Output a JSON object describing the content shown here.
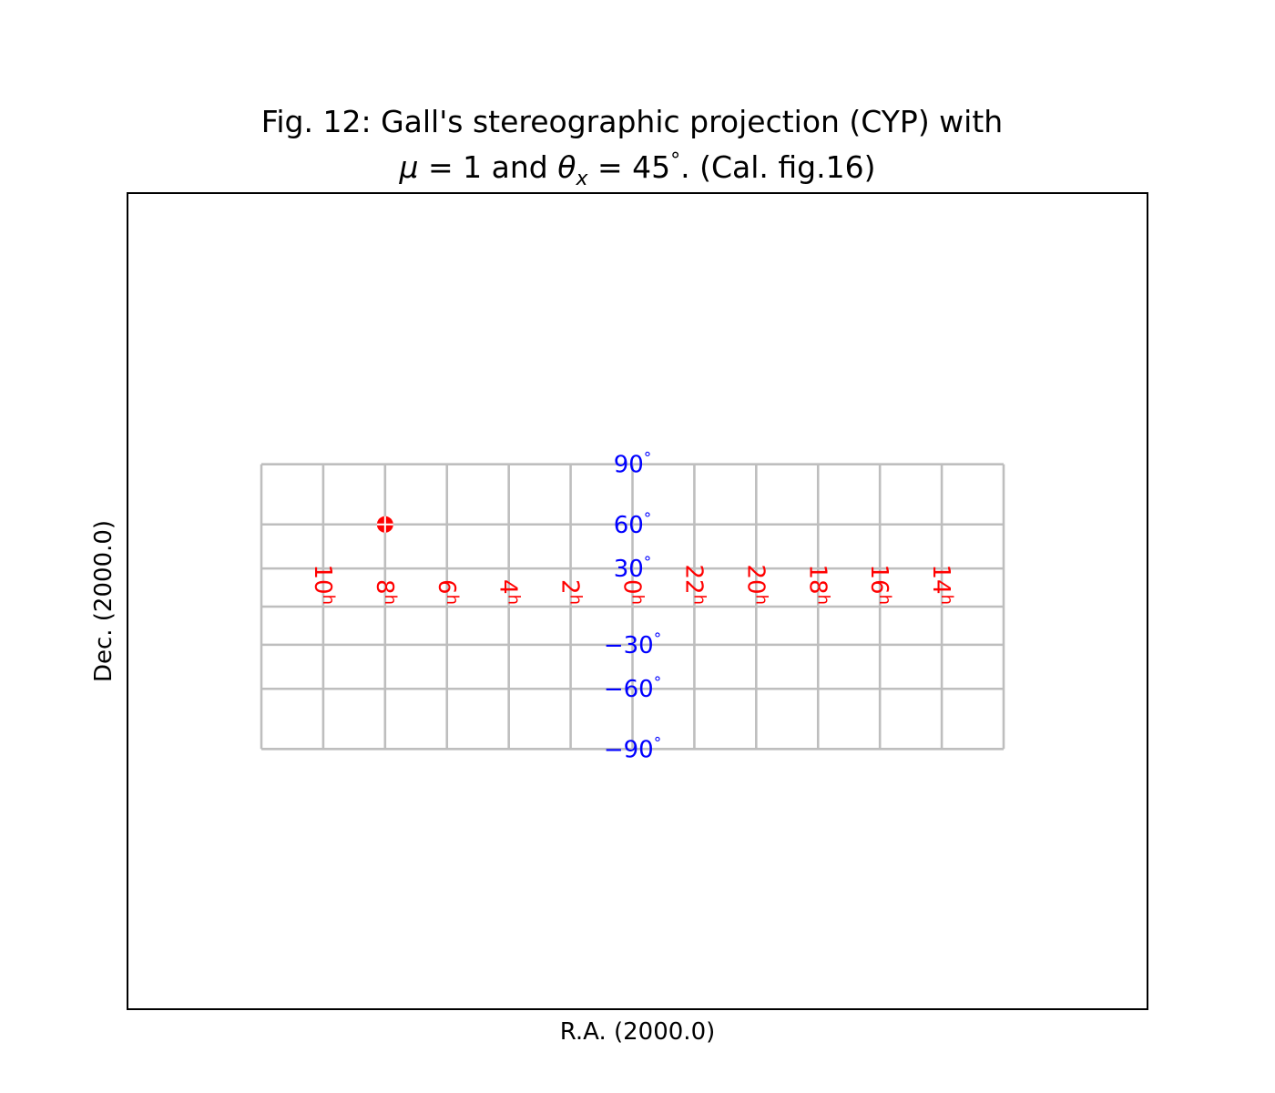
{
  "chart_data": {
    "type": "scatter",
    "title_line1": "Fig. 12: Gall's stereographic projection (CYP) with",
    "title_line2_parts": {
      "mu": "μ",
      "eq1": " = 1 and ",
      "theta": "θ",
      "sub": "x",
      "eq2": " = 45",
      "deg": "°",
      "rest": ". (Cal. fig.16)"
    },
    "title_color": "#008000",
    "xlabel": "R.A. (2000.0)",
    "ylabel": "Dec. (2000.0)",
    "projection": "CYP",
    "mu": 1,
    "theta_x": 45,
    "grid_color": "#bebebe",
    "ra_label_color": "#ff0000",
    "dec_label_color": "#0000ff",
    "frame": true,
    "ra_range_deg": [
      -180,
      180
    ],
    "dec_range_deg": [
      -90,
      90
    ],
    "meridians_ra_deg": [
      180,
      150,
      120,
      90,
      60,
      30,
      0,
      -30,
      -60,
      -90,
      -120,
      -150,
      -180
    ],
    "parallels_dec_deg": [
      -90,
      -60,
      -30,
      0,
      30,
      60,
      90
    ],
    "ra_labels": [
      {
        "ra": 150,
        "hours": "10",
        "unit": "h"
      },
      {
        "ra": 120,
        "hours": "8",
        "unit": "h"
      },
      {
        "ra": 90,
        "hours": "6",
        "unit": "h"
      },
      {
        "ra": 60,
        "hours": "4",
        "unit": "h"
      },
      {
        "ra": 30,
        "hours": "2",
        "unit": "h"
      },
      {
        "ra": 0,
        "hours": "0",
        "unit": "h"
      },
      {
        "ra": -30,
        "hours": "22",
        "unit": "h"
      },
      {
        "ra": -60,
        "hours": "20",
        "unit": "h"
      },
      {
        "ra": -90,
        "hours": "18",
        "unit": "h"
      },
      {
        "ra": -120,
        "hours": "16",
        "unit": "h"
      },
      {
        "ra": -150,
        "hours": "14",
        "unit": "h"
      }
    ],
    "dec_labels": [
      {
        "dec": 90,
        "text": "90",
        "unit": "°"
      },
      {
        "dec": 60,
        "text": "60",
        "unit": "°"
      },
      {
        "dec": 30,
        "text": "30",
        "unit": "°"
      },
      {
        "dec": -30,
        "text": "−30",
        "unit": "°"
      },
      {
        "dec": -60,
        "text": "−60",
        "unit": "°"
      },
      {
        "dec": -90,
        "text": "−90",
        "unit": "°"
      }
    ],
    "points": [
      {
        "ra": 120,
        "dec": 60,
        "color": "#ff0000",
        "marker": "crossed-circle"
      }
    ]
  }
}
